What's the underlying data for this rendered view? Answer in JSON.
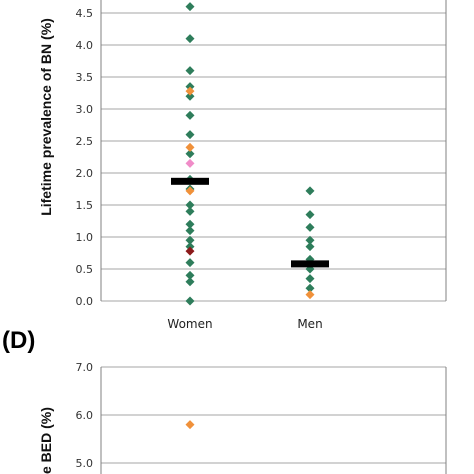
{
  "chart_data": [
    {
      "type": "scatter",
      "panel_label": "",
      "ylabel": "Lifetime prevalence of BN (%)",
      "categories": [
        "Women",
        "Men"
      ],
      "ylim": [
        0,
        4.7
      ],
      "y_ticks": [
        "0.0",
        "0.5",
        "1.0",
        "1.5",
        "2.0",
        "2.5",
        "3.0",
        "3.5",
        "4.0",
        "4.5"
      ],
      "grid": true,
      "series": [
        {
          "color": "#2e7d5b",
          "points": [
            {
              "x": "Women",
              "y": 4.6
            },
            {
              "x": "Women",
              "y": 4.1
            },
            {
              "x": "Women",
              "y": 3.6
            },
            {
              "x": "Women",
              "y": 3.35
            },
            {
              "x": "Women",
              "y": 3.2
            },
            {
              "x": "Women",
              "y": 2.9
            },
            {
              "x": "Women",
              "y": 2.6
            },
            {
              "x": "Women",
              "y": 2.3
            },
            {
              "x": "Women",
              "y": 1.9
            },
            {
              "x": "Women",
              "y": 1.75
            },
            {
              "x": "Women",
              "y": 1.5
            },
            {
              "x": "Women",
              "y": 1.4
            },
            {
              "x": "Women",
              "y": 1.2
            },
            {
              "x": "Women",
              "y": 1.1
            },
            {
              "x": "Women",
              "y": 0.95
            },
            {
              "x": "Women",
              "y": 0.85
            },
            {
              "x": "Women",
              "y": 0.6
            },
            {
              "x": "Women",
              "y": 0.4
            },
            {
              "x": "Women",
              "y": 0.3
            },
            {
              "x": "Women",
              "y": 0.0
            },
            {
              "x": "Men",
              "y": 1.72
            },
            {
              "x": "Men",
              "y": 1.35
            },
            {
              "x": "Men",
              "y": 1.15
            },
            {
              "x": "Men",
              "y": 0.95
            },
            {
              "x": "Men",
              "y": 0.85
            },
            {
              "x": "Men",
              "y": 0.65
            },
            {
              "x": "Men",
              "y": 0.5
            },
            {
              "x": "Men",
              "y": 0.35
            },
            {
              "x": "Men",
              "y": 0.2
            }
          ]
        },
        {
          "color": "#f0913a",
          "points": [
            {
              "x": "Women",
              "y": 3.28
            },
            {
              "x": "Women",
              "y": 2.4
            },
            {
              "x": "Women",
              "y": 1.72
            },
            {
              "x": "Men",
              "y": 0.1
            }
          ]
        },
        {
          "color": "#f08cc8",
          "points": [
            {
              "x": "Women",
              "y": 2.15
            }
          ]
        },
        {
          "color": "#8b1a1a",
          "points": [
            {
              "x": "Women",
              "y": 0.78
            }
          ]
        }
      ],
      "medians": [
        {
          "x": "Women",
          "y": 1.87
        },
        {
          "x": "Men",
          "y": 0.58
        }
      ],
      "median_color": "#000000"
    },
    {
      "type": "scatter",
      "panel_label": "(D)",
      "ylabel": "e BED (%)",
      "categories": [],
      "ylim": [
        4.8,
        7.0
      ],
      "y_ticks": [
        "5.0",
        "6.0",
        "7.0"
      ],
      "grid": true,
      "series": [
        {
          "color": "#f0913a",
          "points": [
            {
              "x": "Women",
              "y": 5.8
            }
          ]
        }
      ]
    }
  ]
}
